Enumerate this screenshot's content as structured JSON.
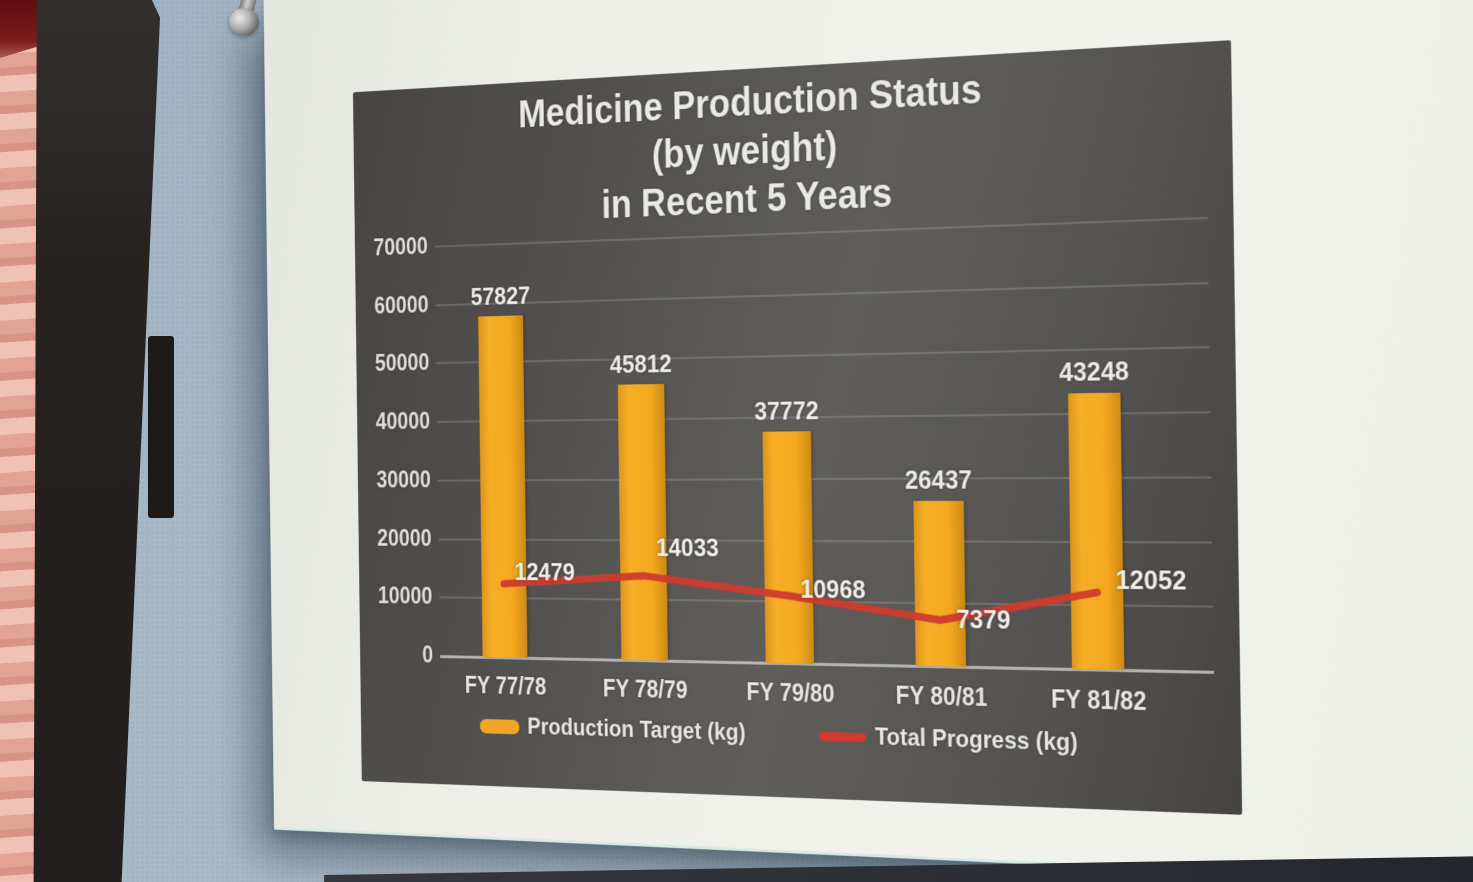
{
  "scene": {
    "photo_objects": {
      "curtain": "pink-curtain-left",
      "wall": "blue-gray-wall",
      "paper": "white-printed-sheet",
      "pin": "metal-pin"
    },
    "colors": {
      "bar": "#f2a51f",
      "line": "#d03a2e",
      "panel_bg": "#565451",
      "paper": "#eef0ea",
      "wall": "#a9bac8",
      "text": "#eceae6"
    }
  },
  "chart_data": {
    "type": "bar",
    "combo_note": "bar series plus overlaid line series",
    "title_lines": [
      "Medicine Production Status",
      "(by weight)",
      "in Recent 5 Years"
    ],
    "categories": [
      "FY 77/78",
      "FY 78/79",
      "FY 79/80",
      "FY 80/81",
      "FY 81/82"
    ],
    "series": [
      {
        "name": "Production Target (kg)",
        "type": "bar",
        "color": "#f2a51f",
        "values": [
          57827,
          45812,
          37772,
          26437,
          43248
        ]
      },
      {
        "name": "Total Progress (kg)",
        "type": "line",
        "color": "#d03a2e",
        "values": [
          12479,
          14033,
          10968,
          7379,
          12052
        ]
      }
    ],
    "y_ticks": [
      0,
      10000,
      20000,
      30000,
      40000,
      50000,
      60000,
      70000
    ],
    "ylim": [
      0,
      70000
    ],
    "xlabel": "",
    "ylabel": "",
    "grid": true,
    "legend_position": "bottom"
  }
}
